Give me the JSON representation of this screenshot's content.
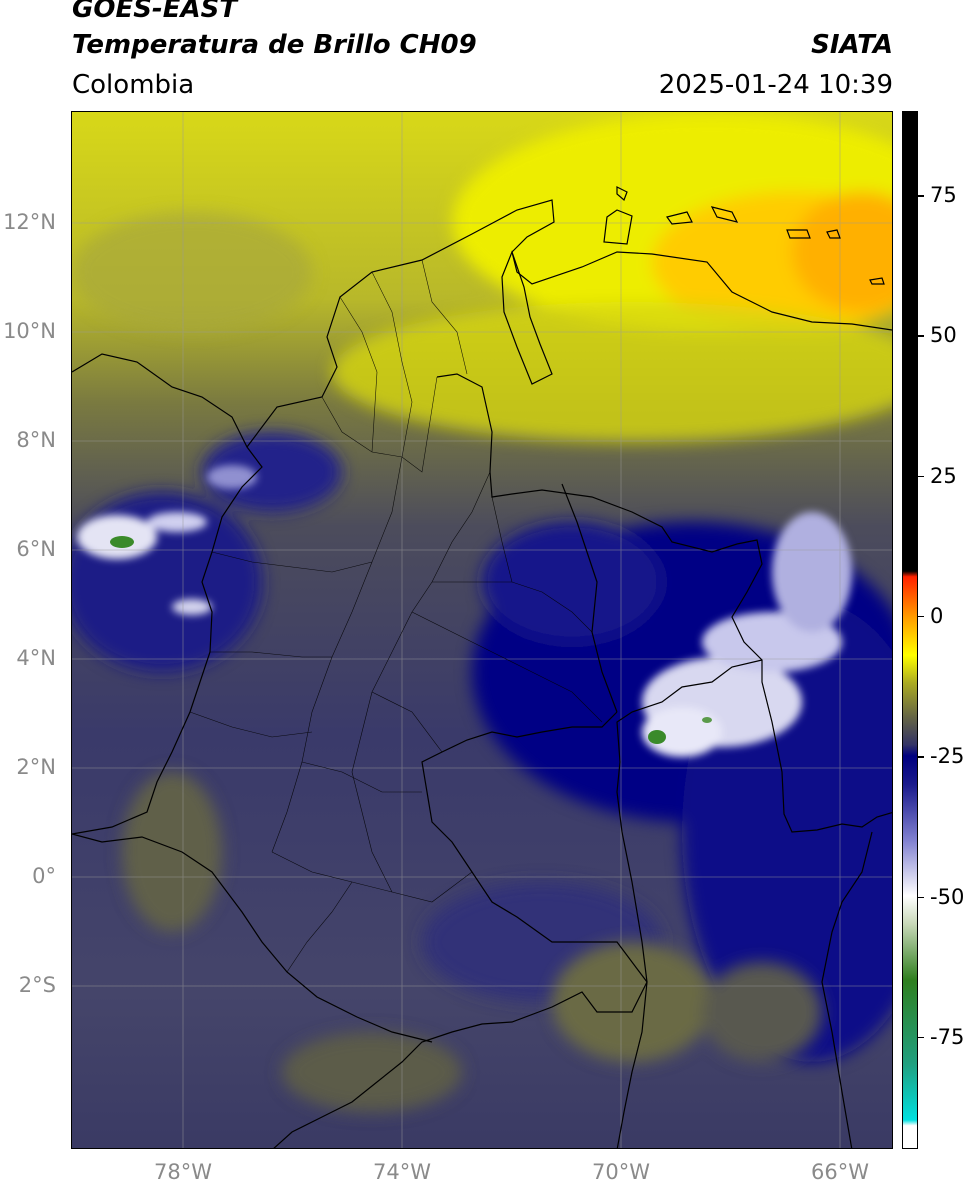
{
  "header": {
    "satellite": "GOES-EAST",
    "product": "Temperatura de Brillo CH09",
    "region": "Colombia",
    "agency": "SIATA",
    "datetime": "2025-01-24 10:39"
  },
  "map": {
    "lon_range": [
      -80,
      -65
    ],
    "lat_range": [
      -5,
      14
    ],
    "lat_ticks": [
      {
        "value": 12,
        "label": "12°N"
      },
      {
        "value": 10,
        "label": "10°N"
      },
      {
        "value": 8,
        "label": "8°N"
      },
      {
        "value": 6,
        "label": "6°N"
      },
      {
        "value": 4,
        "label": "4°N"
      },
      {
        "value": 2,
        "label": "2°N"
      },
      {
        "value": 0,
        "label": "0°"
      },
      {
        "value": -2,
        "label": "2°S"
      }
    ],
    "lon_ticks": [
      {
        "value": -78,
        "label": "78°W"
      },
      {
        "value": -74,
        "label": "74°W"
      },
      {
        "value": -70,
        "label": "70°W"
      },
      {
        "value": -66,
        "label": "66°W"
      }
    ],
    "grid": true
  },
  "colorbar": {
    "range": [
      -95,
      90
    ],
    "ticks": [
      {
        "value": 75,
        "label": "75"
      },
      {
        "value": 50,
        "label": "50"
      },
      {
        "value": 25,
        "label": "25"
      },
      {
        "value": 0,
        "label": "0"
      },
      {
        "value": -25,
        "label": "-25"
      },
      {
        "value": -50,
        "label": "-50"
      },
      {
        "value": -75,
        "label": "-75"
      }
    ],
    "stops": [
      {
        "value": -95,
        "color": "#ffffff"
      },
      {
        "value": -91,
        "color": "#ffffff"
      },
      {
        "value": -90,
        "color": "#00e0e0"
      },
      {
        "value": -80,
        "color": "#20a080"
      },
      {
        "value": -65,
        "color": "#2f7f1f"
      },
      {
        "value": -55,
        "color": "#c8d8b8"
      },
      {
        "value": -50,
        "color": "#ffffff"
      },
      {
        "value": -40,
        "color": "#8080d0"
      },
      {
        "value": -30,
        "color": "#1a1a8c"
      },
      {
        "value": -25,
        "color": "#000080"
      },
      {
        "value": -23,
        "color": "#333366"
      },
      {
        "value": -18,
        "color": "#666644"
      },
      {
        "value": -12,
        "color": "#aaaa22"
      },
      {
        "value": -7,
        "color": "#ffff00"
      },
      {
        "value": 0,
        "color": "#ff9900"
      },
      {
        "value": 7,
        "color": "#ff2200"
      },
      {
        "value": 8,
        "color": "#000000"
      },
      {
        "value": 90,
        "color": "#000000"
      }
    ]
  },
  "colors": {
    "cold_cloud": "#000080",
    "mid_level": "#4a4a6a",
    "warm_dry": "#e6e600",
    "hot": "#ffb000"
  }
}
